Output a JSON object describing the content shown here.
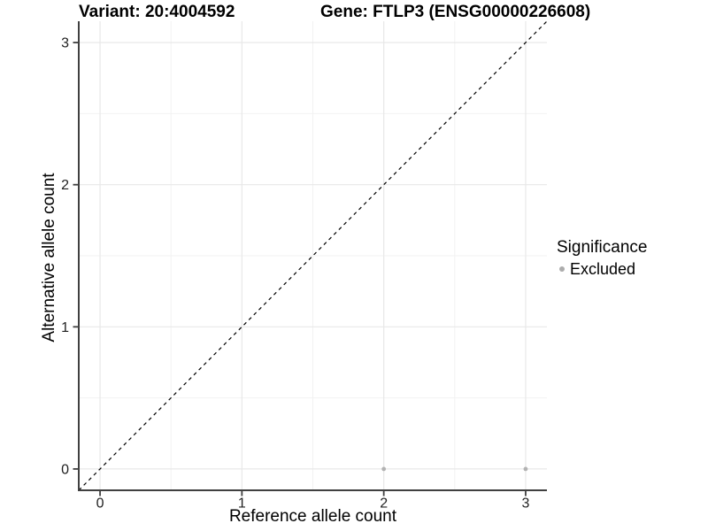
{
  "chart_data": {
    "type": "scatter",
    "title_left": "Variant: 20:4004592",
    "title_right": "Gene: FTLP3 (ENSG00000226608)",
    "xlabel": "Reference allele count",
    "ylabel": "Alternative allele count",
    "xlim": [
      -0.15,
      3.15
    ],
    "ylim": [
      -0.15,
      3.15
    ],
    "x_ticks": [
      0,
      1,
      2,
      3
    ],
    "y_ticks": [
      0,
      1,
      2,
      3
    ],
    "x_minor_ticks": [
      0.5,
      1.5,
      2.5
    ],
    "y_minor_ticks": [
      0.5,
      1.5,
      2.5
    ],
    "grid": true,
    "identity_line": {
      "style": "dashed",
      "from": [
        -0.15,
        -0.15
      ],
      "to": [
        3.15,
        3.15
      ]
    },
    "series": [
      {
        "name": "Excluded",
        "color": "#b2b2b2",
        "points": [
          {
            "x": 2,
            "y": 0
          },
          {
            "x": 3,
            "y": 0
          }
        ]
      }
    ],
    "legend": {
      "position": "right",
      "title": "Significance",
      "items": [
        {
          "label": "Excluded",
          "color": "#acacac"
        }
      ]
    },
    "colors": {
      "background": "#ffffff",
      "grid_major": "#e8e8e8",
      "grid_minor": "#f2f2f2",
      "axis": "#404040",
      "tick_label": "#212121",
      "identity_line": "#000000"
    }
  }
}
